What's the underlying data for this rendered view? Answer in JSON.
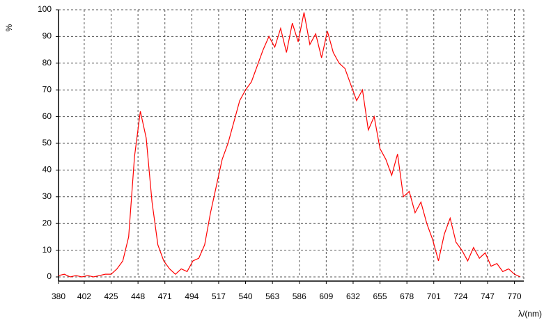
{
  "chart_data": {
    "type": "line",
    "y_label": "%",
    "x_label": "λ/(nm)",
    "x": [
      380,
      385,
      390,
      395,
      400,
      405,
      410,
      415,
      420,
      425,
      430,
      435,
      440,
      445,
      450,
      455,
      460,
      465,
      470,
      475,
      480,
      485,
      490,
      495,
      500,
      505,
      510,
      515,
      520,
      525,
      530,
      535,
      540,
      545,
      550,
      555,
      560,
      565,
      570,
      575,
      580,
      585,
      590,
      595,
      600,
      605,
      610,
      615,
      620,
      625,
      630,
      635,
      640,
      645,
      650,
      655,
      660,
      665,
      670,
      675,
      680,
      685,
      690,
      695,
      700,
      705,
      710,
      715,
      720,
      725,
      730,
      735,
      740,
      745,
      750,
      755,
      760,
      765,
      770,
      775
    ],
    "series": [
      {
        "color": "#ff0000",
        "values": [
          0.5,
          1,
          0,
          0.5,
          0,
          0.5,
          0,
          0.5,
          1,
          1,
          3,
          6,
          15,
          45,
          62,
          52,
          28,
          12,
          6,
          3,
          1,
          3,
          2,
          6,
          7,
          12,
          24,
          34,
          44,
          50,
          58,
          66,
          70,
          73,
          79,
          85,
          90,
          86,
          93,
          84,
          95,
          88,
          99,
          87,
          91,
          82,
          92,
          84,
          80,
          78,
          72,
          66,
          70,
          55,
          60,
          48,
          44,
          38,
          46,
          30,
          32,
          24,
          28,
          20,
          14,
          6,
          16,
          22,
          13,
          10,
          6,
          11,
          7,
          9,
          4,
          5,
          2,
          3,
          1,
          0
        ]
      }
    ],
    "xlim": [
      380,
      778
    ],
    "ylim": [
      0,
      100
    ],
    "xticks": [
      380,
      402,
      425,
      448,
      471,
      494,
      517,
      540,
      563,
      586,
      609,
      632,
      655,
      678,
      701,
      724,
      747,
      770
    ],
    "yticks": [
      0,
      10,
      20,
      30,
      40,
      50,
      60,
      70,
      80,
      90,
      100
    ],
    "grid": true
  }
}
